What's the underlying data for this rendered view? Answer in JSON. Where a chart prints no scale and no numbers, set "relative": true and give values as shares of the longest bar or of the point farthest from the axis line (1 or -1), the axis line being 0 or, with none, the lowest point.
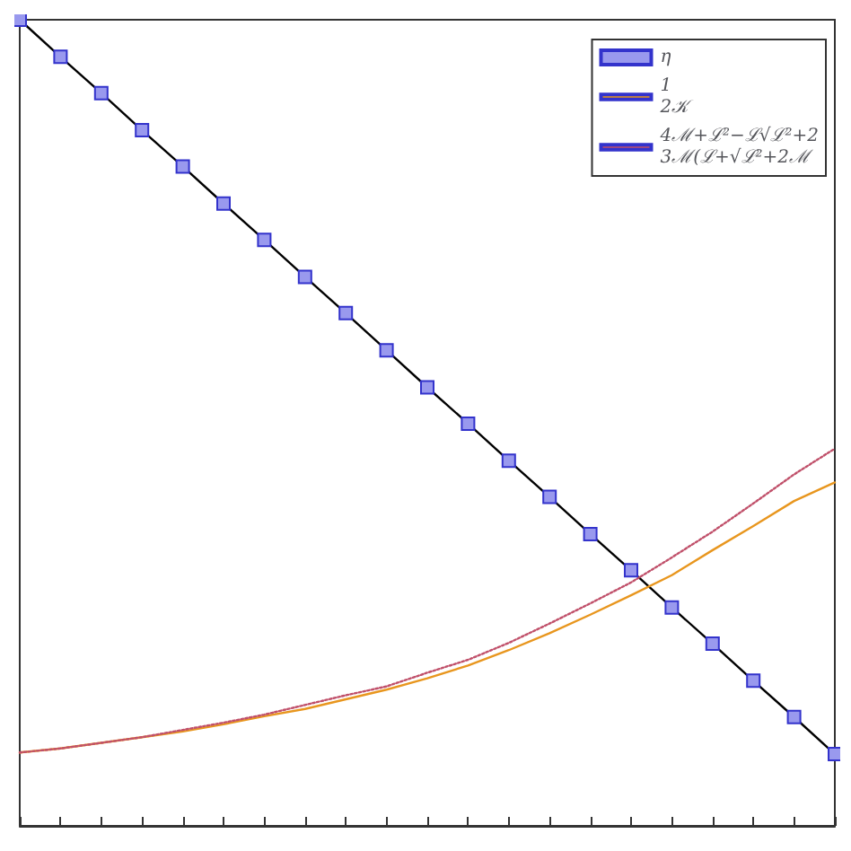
{
  "chart_data": {
    "type": "line",
    "relative": true,
    "categories": [
      null,
      null,
      null,
      null,
      null,
      null,
      null,
      null,
      null,
      null,
      null,
      null,
      null,
      null,
      null,
      null,
      null,
      null,
      null,
      null,
      null
    ],
    "legend": "top right",
    "series": [
      {
        "name": "η",
        "color": "#9999ee",
        "marker": "square",
        "line_style": "solid",
        "values": [
          1,
          0.954,
          0.909,
          0.863,
          0.818,
          0.772,
          0.727,
          0.681,
          0.636,
          0.59,
          0.544,
          0.499,
          0.453,
          0.408,
          0.362,
          0.317,
          0.271,
          0.226,
          0.18,
          0.135,
          0.089
        ]
      },
      {
        "name": "1\n2𝒦",
        "color": "#e8961e",
        "marker": "none",
        "line_style": "solid",
        "values": [
          0.091,
          0.096,
          0.103,
          0.11,
          0.117,
          0.126,
          0.136,
          0.145,
          0.157,
          0.169,
          0.183,
          0.199,
          0.218,
          0.239,
          0.262,
          0.286,
          0.311,
          0.342,
          0.372,
          0.403,
          0.426
        ]
      },
      {
        "name": "4ℳ+ℒ²−ℒ√ℒ²+2\n3ℳ(ℒ+√ℒ²+2ℳ",
        "color": "#c0506a",
        "marker": "none",
        "line_style": "dotted",
        "values": [
          0.091,
          0.096,
          0.103,
          0.11,
          0.119,
          0.128,
          0.138,
          0.15,
          0.162,
          0.173,
          0.19,
          0.206,
          0.227,
          0.251,
          0.276,
          0.302,
          0.333,
          0.365,
          0.4,
          0.436,
          0.468
        ]
      }
    ]
  }
}
